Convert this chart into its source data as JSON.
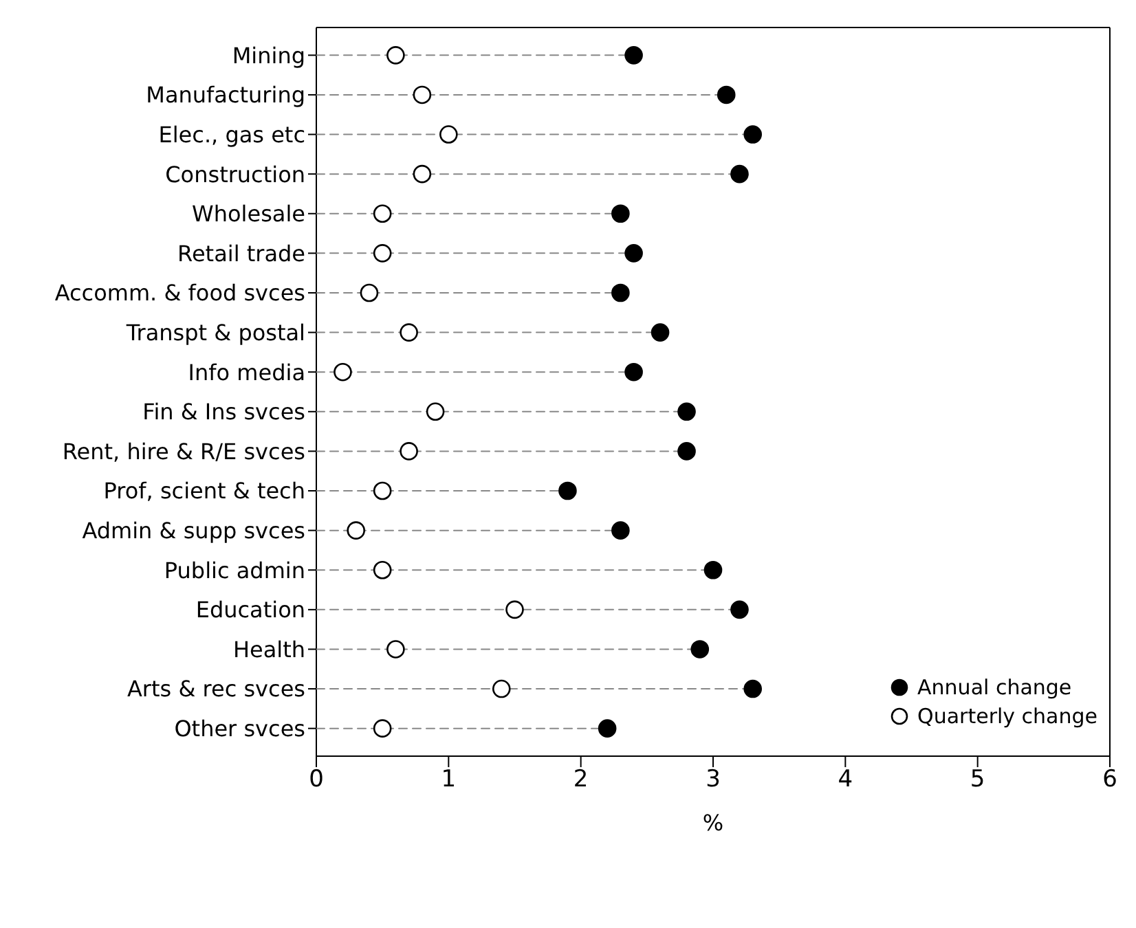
{
  "chart_data": {
    "type": "lollipop",
    "orientation": "horizontal",
    "xlabel": "%",
    "categories": [
      "Mining",
      "Manufacturing",
      "Elec., gas etc",
      "Construction",
      "Wholesale",
      "Retail trade",
      "Accomm. & food svces",
      "Transpt & postal",
      "Info media",
      "Fin & Ins svces",
      "Rent, hire & R/E svces",
      "Prof, scient & tech",
      "Admin & supp svces",
      "Public admin",
      "Education",
      "Health",
      "Arts & rec svces",
      "Other svces"
    ],
    "series": [
      {
        "name": "Annual change",
        "color": "#000000",
        "values": [
          2.4,
          3.1,
          3.3,
          3.2,
          2.3,
          2.4,
          2.3,
          2.6,
          2.4,
          2.8,
          2.8,
          1.9,
          2.3,
          3.0,
          3.2,
          2.9,
          3.3,
          2.2
        ]
      },
      {
        "name": "Quarterly change",
        "color": "#ffffff",
        "values": [
          0.6,
          0.8,
          1.0,
          0.8,
          0.5,
          0.5,
          0.4,
          0.7,
          0.2,
          0.9,
          0.7,
          0.5,
          0.3,
          0.5,
          1.5,
          0.6,
          1.4,
          0.5
        ]
      }
    ],
    "xlim": [
      0,
      6
    ],
    "xticks": [
      0,
      1,
      2,
      3,
      4,
      5,
      6
    ],
    "legend": "bottom right",
    "marker": "circle",
    "line_style": "dashed"
  }
}
